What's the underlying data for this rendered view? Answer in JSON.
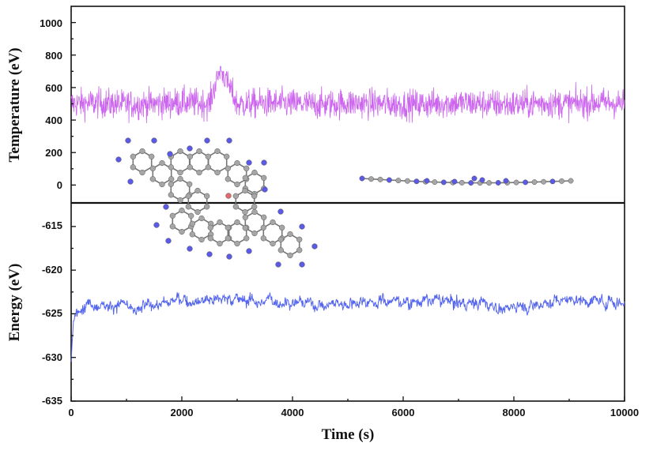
{
  "chart_data": [
    {
      "type": "line",
      "panel": "top",
      "ylabel": "Temperature (eV)",
      "xlim": [
        0,
        10000
      ],
      "ylim": [
        -110,
        1100
      ],
      "yticks": [
        0,
        200,
        400,
        600,
        800,
        1000
      ],
      "grid": false,
      "series": [
        {
          "color": "#cc66ee",
          "mean": 500,
          "typical_range": [
            400,
            600
          ],
          "min_approx": 340,
          "max_approx": 730,
          "x": [
            0,
            500,
            1000,
            1500,
            2000,
            2500,
            2700,
            3000,
            3500,
            4000,
            4500,
            5000,
            5500,
            6000,
            6500,
            7000,
            7500,
            8000,
            8500,
            9000,
            9500,
            10000
          ],
          "values": [
            500,
            505,
            495,
            500,
            510,
            500,
            730,
            495,
            505,
            500,
            495,
            505,
            500,
            495,
            500,
            505,
            500,
            495,
            505,
            500,
            510,
            500
          ]
        }
      ]
    },
    {
      "type": "line",
      "panel": "bottom",
      "xlabel": "Time (s)",
      "ylabel": "Energy (eV)",
      "xlim": [
        0,
        10000
      ],
      "ylim": [
        -635,
        -612.3
      ],
      "xticks": [
        0,
        2000,
        4000,
        6000,
        8000,
        10000
      ],
      "yticks": [
        -635,
        -630,
        -625,
        -620,
        -615
      ],
      "grid": false,
      "series": [
        {
          "color": "#5566ee",
          "x": [
            0,
            20,
            50,
            100,
            200,
            500,
            1000,
            1100,
            1500,
            2000,
            2500,
            3000,
            3500,
            4000,
            4500,
            5000,
            5500,
            6000,
            6500,
            7000,
            7500,
            7900,
            8000,
            8500,
            9000,
            9500,
            10000
          ],
          "values": [
            -630.5,
            -628,
            -626,
            -625,
            -623.7,
            -623.8,
            -624,
            -625,
            -623.8,
            -623.5,
            -623.2,
            -623.3,
            -623.6,
            -623.5,
            -624,
            -623.7,
            -623.4,
            -623.6,
            -623.5,
            -623.7,
            -623.8,
            -624.6,
            -624.1,
            -623.8,
            -623.3,
            -623.5,
            -623.7
          ]
        }
      ]
    }
  ],
  "figure": {
    "x_tick_labels": [
      "0",
      "2000",
      "4000",
      "6000",
      "8000",
      "10000"
    ],
    "top_y_tick_labels": [
      "0",
      "200",
      "400",
      "600",
      "800",
      "1000"
    ],
    "bottom_y_tick_labels": [
      "-635",
      "-630",
      "-625",
      "-620",
      "-615"
    ],
    "xlabel": "Time (s)",
    "top_ylabel": "Temperature (eV)",
    "bottom_ylabel": "Energy (eV)",
    "atom_colors": {
      "carbon": "#a6a6a6",
      "nitrogen": "#5a5ae6",
      "oxygen": "#e06a6a",
      "bond": "#777777"
    }
  }
}
